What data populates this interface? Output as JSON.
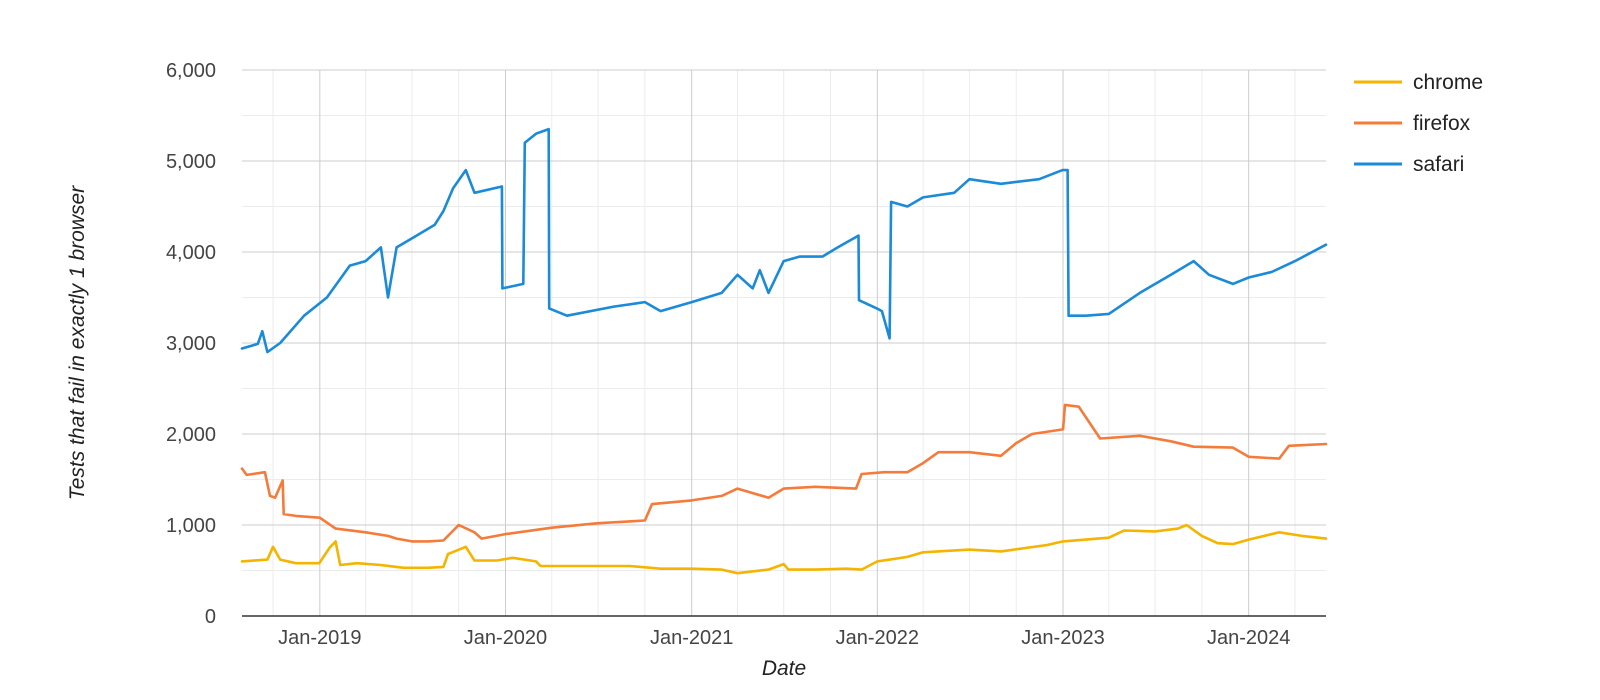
{
  "chart_data": {
    "type": "line",
    "title": "",
    "xlabel": "Date",
    "ylabel": "Tests that fail in exactly 1 browser",
    "xlim": [
      "2018-08-01",
      "2024-06-01"
    ],
    "ylim": [
      0,
      6000
    ],
    "y_ticks": [
      0,
      1000,
      2000,
      3000,
      4000,
      5000,
      6000
    ],
    "y_tick_labels": [
      "0",
      "1,000",
      "2,000",
      "3,000",
      "4,000",
      "5,000",
      "6,000"
    ],
    "x_ticks": [
      "2019-01-01",
      "2020-01-01",
      "2021-01-01",
      "2022-01-01",
      "2023-01-01",
      "2024-01-01"
    ],
    "x_tick_labels": [
      "Jan-2019",
      "Jan-2020",
      "Jan-2021",
      "Jan-2022",
      "Jan-2023",
      "Jan-2024"
    ],
    "grid": true,
    "legend_position": "top-right",
    "series": [
      {
        "name": "chrome",
        "color": "#F4B400",
        "points": [
          [
            "2018-08-01",
            600
          ],
          [
            "2018-09-20",
            620
          ],
          [
            "2018-10-01",
            760
          ],
          [
            "2018-10-15",
            620
          ],
          [
            "2018-11-15",
            580
          ],
          [
            "2018-12-31",
            580
          ],
          [
            "2019-01-20",
            750
          ],
          [
            "2019-02-01",
            820
          ],
          [
            "2019-02-10",
            560
          ],
          [
            "2019-03-15",
            580
          ],
          [
            "2019-05-01",
            560
          ],
          [
            "2019-06-15",
            530
          ],
          [
            "2019-08-01",
            530
          ],
          [
            "2019-09-01",
            540
          ],
          [
            "2019-09-10",
            680
          ],
          [
            "2019-10-15",
            760
          ],
          [
            "2019-11-01",
            610
          ],
          [
            "2019-12-15",
            610
          ],
          [
            "2020-01-15",
            640
          ],
          [
            "2020-03-01",
            600
          ],
          [
            "2020-03-10",
            550
          ],
          [
            "2020-06-01",
            550
          ],
          [
            "2020-09-01",
            550
          ],
          [
            "2020-11-01",
            520
          ],
          [
            "2021-01-01",
            520
          ],
          [
            "2021-03-01",
            510
          ],
          [
            "2021-04-01",
            470
          ],
          [
            "2021-06-01",
            510
          ],
          [
            "2021-07-01",
            570
          ],
          [
            "2021-07-10",
            510
          ],
          [
            "2021-09-01",
            510
          ],
          [
            "2021-11-01",
            520
          ],
          [
            "2021-12-01",
            510
          ],
          [
            "2022-01-01",
            600
          ],
          [
            "2022-03-01",
            650
          ],
          [
            "2022-04-01",
            700
          ],
          [
            "2022-07-01",
            730
          ],
          [
            "2022-09-01",
            710
          ],
          [
            "2022-12-01",
            780
          ],
          [
            "2023-01-01",
            820
          ],
          [
            "2023-04-01",
            860
          ],
          [
            "2023-05-01",
            940
          ],
          [
            "2023-07-01",
            930
          ],
          [
            "2023-08-15",
            960
          ],
          [
            "2023-09-01",
            1000
          ],
          [
            "2023-10-01",
            880
          ],
          [
            "2023-11-01",
            800
          ],
          [
            "2023-12-01",
            790
          ],
          [
            "2024-01-01",
            840
          ],
          [
            "2024-03-01",
            920
          ],
          [
            "2024-04-15",
            880
          ],
          [
            "2024-06-01",
            850
          ]
        ]
      },
      {
        "name": "firefox",
        "color": "#F47B3A",
        "points": [
          [
            "2018-08-01",
            1620
          ],
          [
            "2018-08-10",
            1550
          ],
          [
            "2018-09-15",
            1580
          ],
          [
            "2018-09-25",
            1320
          ],
          [
            "2018-10-05",
            1300
          ],
          [
            "2018-10-20",
            1490
          ],
          [
            "2018-10-22",
            1120
          ],
          [
            "2018-11-15",
            1100
          ],
          [
            "2019-01-01",
            1080
          ],
          [
            "2019-02-01",
            960
          ],
          [
            "2019-04-01",
            920
          ],
          [
            "2019-05-15",
            880
          ],
          [
            "2019-06-01",
            850
          ],
          [
            "2019-07-01",
            820
          ],
          [
            "2019-08-01",
            820
          ],
          [
            "2019-09-01",
            830
          ],
          [
            "2019-10-01",
            1000
          ],
          [
            "2019-11-01",
            920
          ],
          [
            "2019-11-15",
            850
          ],
          [
            "2020-01-01",
            900
          ],
          [
            "2020-04-01",
            970
          ],
          [
            "2020-07-01",
            1020
          ],
          [
            "2020-10-01",
            1050
          ],
          [
            "2020-10-15",
            1230
          ],
          [
            "2021-01-01",
            1270
          ],
          [
            "2021-03-01",
            1320
          ],
          [
            "2021-04-01",
            1400
          ],
          [
            "2021-06-01",
            1300
          ],
          [
            "2021-07-01",
            1400
          ],
          [
            "2021-09-01",
            1420
          ],
          [
            "2021-11-20",
            1400
          ],
          [
            "2021-12-01",
            1560
          ],
          [
            "2022-01-15",
            1580
          ],
          [
            "2022-03-01",
            1580
          ],
          [
            "2022-04-01",
            1680
          ],
          [
            "2022-05-01",
            1800
          ],
          [
            "2022-07-01",
            1800
          ],
          [
            "2022-09-01",
            1760
          ],
          [
            "2022-10-01",
            1900
          ],
          [
            "2022-11-01",
            2000
          ],
          [
            "2023-01-01",
            2050
          ],
          [
            "2023-01-05",
            2320
          ],
          [
            "2023-02-01",
            2300
          ],
          [
            "2023-03-15",
            1950
          ],
          [
            "2023-06-01",
            1980
          ],
          [
            "2023-08-01",
            1920
          ],
          [
            "2023-09-15",
            1860
          ],
          [
            "2023-12-01",
            1850
          ],
          [
            "2024-01-01",
            1750
          ],
          [
            "2024-03-01",
            1730
          ],
          [
            "2024-03-20",
            1870
          ],
          [
            "2024-06-01",
            1890
          ]
        ]
      },
      {
        "name": "safari",
        "color": "#1B8AD9",
        "points": [
          [
            "2018-08-01",
            2940
          ],
          [
            "2018-09-01",
            2990
          ],
          [
            "2018-09-10",
            3130
          ],
          [
            "2018-09-20",
            2900
          ],
          [
            "2018-10-15",
            3000
          ],
          [
            "2018-12-01",
            3300
          ],
          [
            "2019-01-15",
            3500
          ],
          [
            "2019-03-01",
            3850
          ],
          [
            "2019-04-01",
            3900
          ],
          [
            "2019-05-01",
            4050
          ],
          [
            "2019-05-15",
            3500
          ],
          [
            "2019-06-01",
            4050
          ],
          [
            "2019-07-01",
            4150
          ],
          [
            "2019-08-15",
            4300
          ],
          [
            "2019-09-01",
            4450
          ],
          [
            "2019-09-20",
            4700
          ],
          [
            "2019-10-15",
            4900
          ],
          [
            "2019-11-01",
            4650
          ],
          [
            "2019-12-25",
            4720
          ],
          [
            "2019-12-26",
            3600
          ],
          [
            "2020-02-05",
            3650
          ],
          [
            "2020-02-08",
            5200
          ],
          [
            "2020-03-01",
            5300
          ],
          [
            "2020-03-26",
            5350
          ],
          [
            "2020-03-27",
            3380
          ],
          [
            "2020-05-01",
            3300
          ],
          [
            "2020-08-01",
            3400
          ],
          [
            "2020-10-01",
            3450
          ],
          [
            "2020-11-01",
            3350
          ],
          [
            "2021-01-01",
            3450
          ],
          [
            "2021-03-01",
            3550
          ],
          [
            "2021-04-01",
            3750
          ],
          [
            "2021-05-01",
            3600
          ],
          [
            "2021-05-15",
            3800
          ],
          [
            "2021-06-01",
            3550
          ],
          [
            "2021-07-01",
            3900
          ],
          [
            "2021-08-01",
            3950
          ],
          [
            "2021-09-15",
            3950
          ],
          [
            "2021-10-15",
            4050
          ],
          [
            "2021-11-25",
            4180
          ],
          [
            "2021-11-26",
            3470
          ],
          [
            "2021-12-31",
            3380
          ],
          [
            "2022-01-10",
            3350
          ],
          [
            "2022-01-25",
            3050
          ],
          [
            "2022-01-28",
            4550
          ],
          [
            "2022-03-01",
            4500
          ],
          [
            "2022-04-01",
            4600
          ],
          [
            "2022-06-01",
            4650
          ],
          [
            "2022-07-01",
            4800
          ],
          [
            "2022-09-01",
            4750
          ],
          [
            "2022-11-15",
            4800
          ],
          [
            "2022-12-31",
            4900
          ],
          [
            "2023-01-10",
            4900
          ],
          [
            "2023-01-12",
            3300
          ],
          [
            "2023-02-15",
            3300
          ],
          [
            "2023-04-01",
            3320
          ],
          [
            "2023-06-01",
            3550
          ],
          [
            "2023-08-01",
            3750
          ],
          [
            "2023-09-15",
            3900
          ],
          [
            "2023-10-15",
            3750
          ],
          [
            "2023-12-01",
            3650
          ],
          [
            "2024-01-01",
            3720
          ],
          [
            "2024-02-15",
            3780
          ],
          [
            "2024-04-01",
            3900
          ],
          [
            "2024-06-01",
            4080
          ]
        ]
      }
    ]
  }
}
